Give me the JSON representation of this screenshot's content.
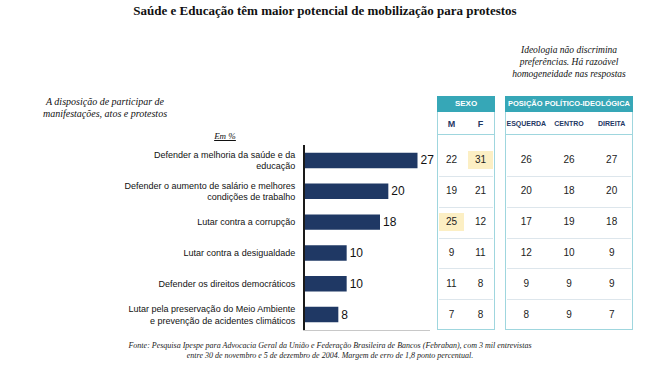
{
  "chart_data": {
    "type": "bar",
    "orientation": "horizontal",
    "title": "Saúde e Educação têm maior potencial de mobilização para protestos",
    "subtitle": "A disposição de participar de manifestações, atos e protestos",
    "annotations": [
      "Em %"
    ],
    "categories": [
      "Defender a melhoria da saúde e da educação",
      "Defender o aumento de salário e melhores condições de trabalho",
      "Lutar contra a corrupção",
      "Lutar contra a desigualdade",
      "Defender os direitos democráticos",
      "Lutar pela preservação do Meio Ambiente e prevenção de acidentes climáticos"
    ],
    "values": [
      27,
      20,
      18,
      10,
      10,
      8
    ],
    "color": "#1f3864",
    "xlim": [
      0,
      30
    ],
    "data_labels": true,
    "tick_labels": "y",
    "grid": false
  },
  "tables": [
    {
      "title": "SEXO",
      "columns": [
        "M",
        "F"
      ],
      "rows": [
        [
          22,
          31
        ],
        [
          19,
          21
        ],
        [
          25,
          12
        ],
        [
          9,
          11
        ],
        [
          11,
          8
        ],
        [
          7,
          8
        ]
      ],
      "highlighted": [
        [
          0,
          1
        ],
        [
          2,
          0
        ]
      ]
    },
    {
      "note": "Ideologia não discrimina preferências. Há razoável homogeneidade nas respostas",
      "title": "POSIÇÃO POLÍTICO-IDEOLÓGICA",
      "columns": [
        "ESQUERDA",
        "CENTRO",
        "DIREITA"
      ],
      "rows": [
        [
          26,
          26,
          27
        ],
        [
          20,
          18,
          20
        ],
        [
          17,
          19,
          18
        ],
        [
          12,
          10,
          9
        ],
        [
          9,
          9,
          9
        ],
        [
          8,
          9,
          7
        ]
      ]
    }
  ],
  "source": "Fonte: Pesquisa Ipespe para Advocacia Geral da União e Federação Brasileira de Bancos (Febraban), com 3 mil entrevistas entre 30 de novembro e 5 de dezembro de 2004. Margem de erro de 1,8 ponto percentual."
}
